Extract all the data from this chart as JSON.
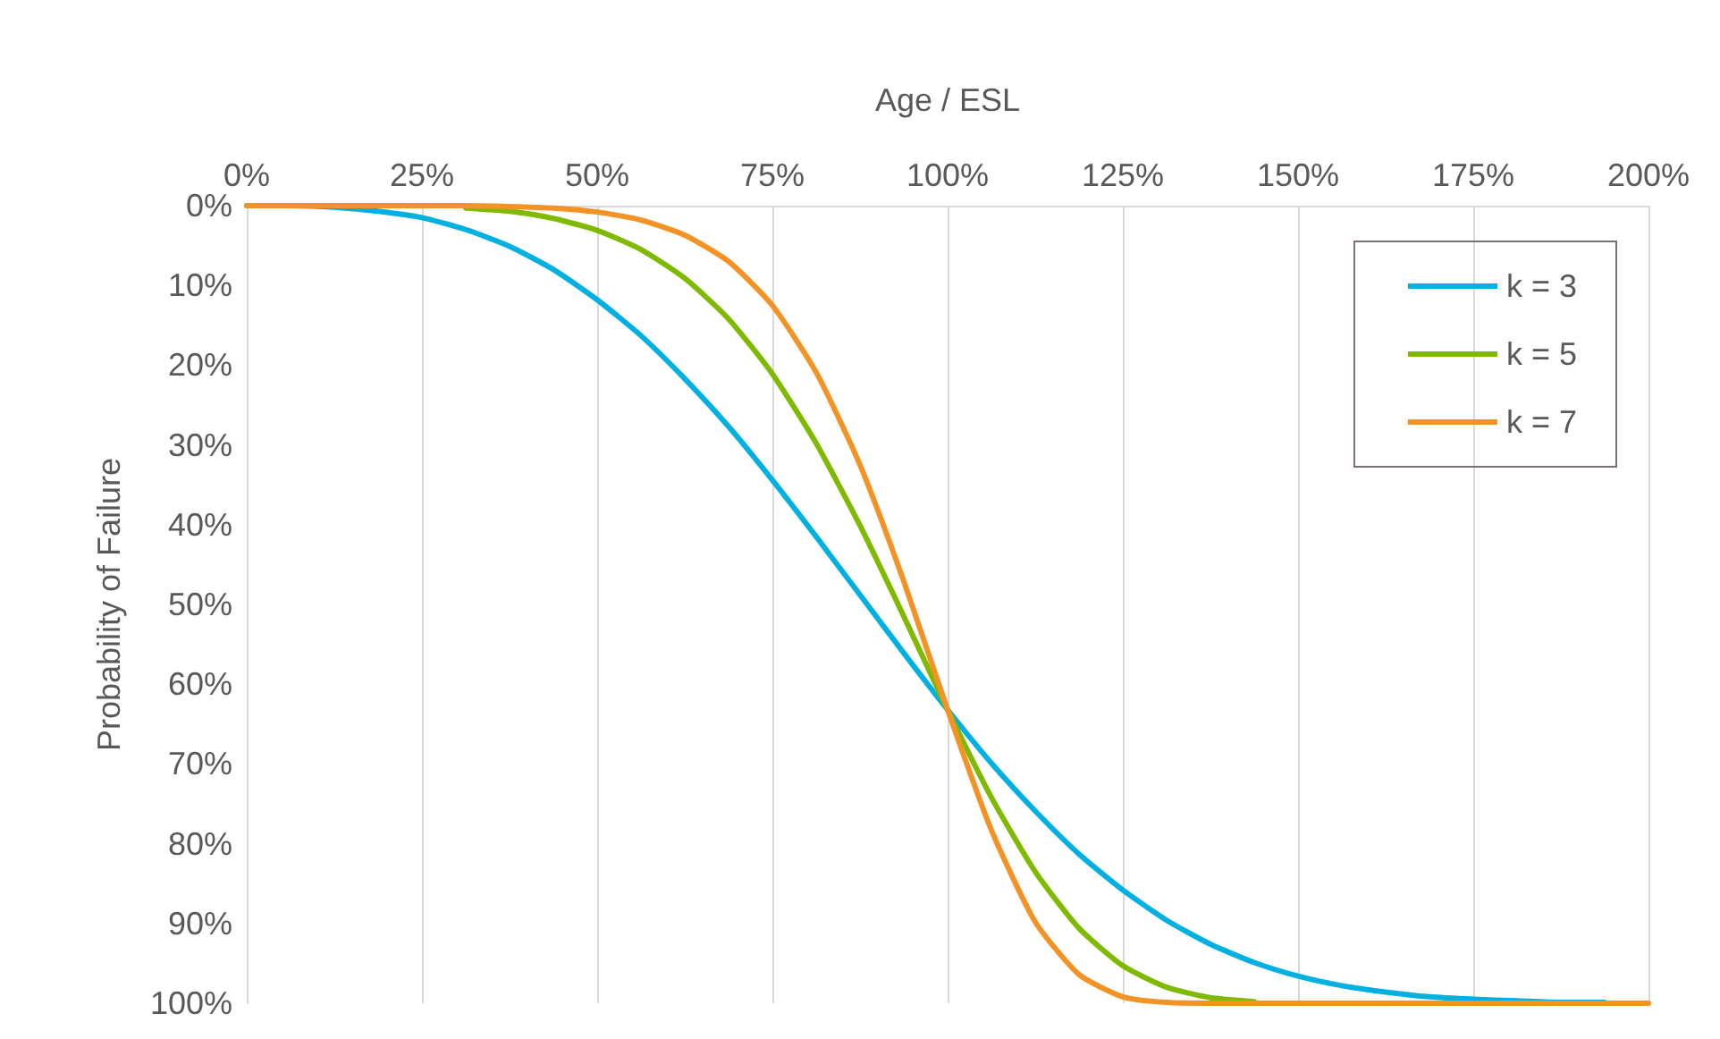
{
  "chart_data": {
    "type": "line",
    "xlabel": "Age / ESL",
    "ylabel": "Probability of Failure",
    "x": [
      0,
      6.25,
      12.5,
      18.75,
      25,
      31.25,
      37.5,
      43.75,
      50,
      56.25,
      62.5,
      68.75,
      75,
      81.25,
      87.5,
      93.75,
      100,
      106.25,
      112.5,
      118.75,
      125,
      131.25,
      137.5,
      143.75,
      150,
      156.25,
      162.5,
      168.75,
      175,
      181.25,
      187.5,
      193.75,
      200
    ],
    "series": [
      {
        "name": "k = 3",
        "color": "#00b0e0",
        "values": [
          0,
          0,
          0.2,
          0.7,
          1.5,
          3.0,
          5.1,
          8.0,
          11.8,
          16.3,
          21.7,
          27.7,
          34.4,
          41.5,
          48.8,
          56.1,
          63.2,
          69.9,
          75.9,
          81.3,
          85.8,
          89.6,
          92.6,
          94.9,
          96.6,
          97.8,
          98.6,
          99.2,
          99.5,
          99.7,
          99.9,
          99.9,
          null
        ]
      },
      {
        "name": "k = 5",
        "color": "#7fba00",
        "values": [
          null,
          null,
          null,
          null,
          null,
          0.3,
          0.7,
          1.6,
          3.1,
          5.5,
          9.1,
          14.2,
          21.1,
          29.8,
          40.1,
          51.5,
          63.2,
          74.2,
          83.5,
          90.6,
          95.3,
          98.0,
          99.3,
          99.8,
          null,
          null,
          null,
          null,
          null,
          null,
          null,
          null,
          null
        ]
      },
      {
        "name": "k = 7",
        "color": "#f39325",
        "values": [
          0,
          0,
          0,
          0,
          0,
          0,
          0.1,
          0.3,
          0.8,
          1.8,
          3.7,
          7.0,
          12.5,
          20.9,
          32.5,
          47.1,
          63.2,
          78.3,
          89.8,
          96.4,
          99.2,
          99.9,
          100,
          100,
          100,
          100,
          100,
          100,
          100,
          100,
          100,
          100,
          100
        ]
      }
    ],
    "xlim": [
      0,
      200
    ],
    "xticks": [
      {
        "value": 0,
        "label": "0%"
      },
      {
        "value": 25,
        "label": "25%"
      },
      {
        "value": 50,
        "label": "50%"
      },
      {
        "value": 75,
        "label": "75%"
      },
      {
        "value": 100,
        "label": "100%"
      },
      {
        "value": 125,
        "label": "125%"
      },
      {
        "value": 150,
        "label": "150%"
      },
      {
        "value": 175,
        "label": "175%"
      },
      {
        "value": 200,
        "label": "200%"
      }
    ],
    "ylim": [
      100,
      0
    ],
    "yticks": [
      {
        "value": 0,
        "label": "0%"
      },
      {
        "value": 10,
        "label": "10%"
      },
      {
        "value": 20,
        "label": "20%"
      },
      {
        "value": 30,
        "label": "30%"
      },
      {
        "value": 40,
        "label": "40%"
      },
      {
        "value": 50,
        "label": "50%"
      },
      {
        "value": 60,
        "label": "60%"
      },
      {
        "value": 70,
        "label": "70%"
      },
      {
        "value": 80,
        "label": "80%"
      },
      {
        "value": 90,
        "label": "90%"
      },
      {
        "value": 100,
        "label": "100%"
      }
    ],
    "grid": "x",
    "legend": "top right",
    "marker": "none",
    "line_style": "solid"
  }
}
